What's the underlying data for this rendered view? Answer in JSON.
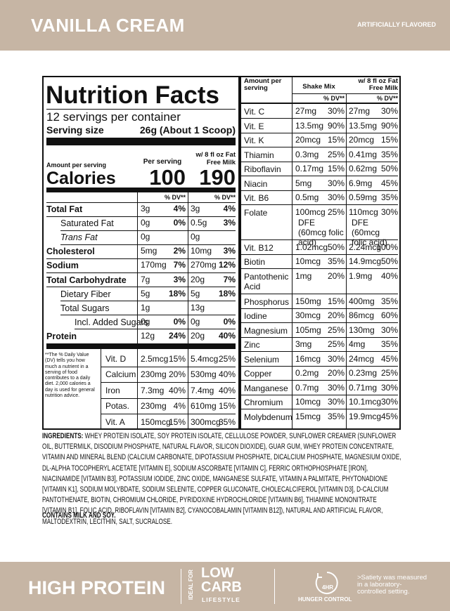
{
  "header": {
    "title": "VANILLA CREAM",
    "flavor_note": "ARTIFICIALLY FLAVORED"
  },
  "label": {
    "title": "Nutrition Facts",
    "servings": "12 servings per container",
    "serving_size_label": "Serving size",
    "serving_size": "26g (About 1 Scoop)",
    "amount_per_serving": "Amount per serving",
    "calories_label": "Calories",
    "per_serving_header": "Per serving",
    "with_milk_header": "w/ 8 fl oz Fat Free Milk",
    "calories": [
      100,
      190
    ],
    "dv_header": "% DV**",
    "nutrients": [
      {
        "name": "Total Fat",
        "serving": "3g",
        "serving_dv": "4%",
        "with_milk": "3g",
        "with_milk_dv": "4%"
      },
      {
        "name": "Saturated Fat",
        "serving": "0g",
        "serving_dv": "0%",
        "with_milk": "0.5g",
        "with_milk_dv": "3%"
      },
      {
        "name": "Trans Fat",
        "serving": "0g",
        "with_milk": "0g"
      },
      {
        "name": "Cholesterol",
        "serving": "5mg",
        "serving_dv": "2%",
        "with_milk": "10mg",
        "with_milk_dv": "3%"
      },
      {
        "name": "Sodium",
        "serving": "170mg",
        "serving_dv": "7%",
        "with_milk": "270mg",
        "with_milk_dv": "12%"
      },
      {
        "name": "Total Carbohydrate",
        "serving": "7g",
        "serving_dv": "3%",
        "with_milk": "20g",
        "with_milk_dv": "7%"
      },
      {
        "name": "Dietary Fiber",
        "serving": "5g",
        "serving_dv": "18%",
        "with_milk": "5g",
        "with_milk_dv": "18%"
      },
      {
        "name": "Total Sugars",
        "serving": "1g",
        "with_milk": "13g"
      },
      {
        "name": "Incl. Added Sugars",
        "serving": "0g",
        "serving_dv": "0%",
        "with_milk": "0g",
        "with_milk_dv": "0%"
      },
      {
        "name": "Protein",
        "serving": "12g",
        "serving_dv": "24%",
        "with_milk": "20g",
        "with_milk_dv": "40%"
      }
    ],
    "footnote": "**The % Daily Value (DV) tells you how much a nutrient in a serving of food contributes to a daily diet. 2,000 calories a day is used for general nutrition advice.",
    "vitamins": [
      {
        "name": "Vit. D",
        "serving": "2.5mcg",
        "serving_dv": "15%",
        "with_milk": "5.4mcg",
        "with_milk_dv": "25%"
      },
      {
        "name": "Calcium",
        "serving": "230mg",
        "serving_dv": "20%",
        "with_milk": "530mg",
        "with_milk_dv": "40%"
      },
      {
        "name": "Iron",
        "serving": "7.3mg",
        "serving_dv": "40%",
        "with_milk": "7.4mg",
        "with_milk_dv": "40%"
      },
      {
        "name": "Potas.",
        "serving": "230mg",
        "serving_dv": "4%",
        "with_milk": "610mg",
        "with_milk_dv": "15%"
      },
      {
        "name": "Vit. A",
        "serving": "150mcg",
        "serving_dv": "15%",
        "with_milk": "300mcg",
        "with_milk_dv": "35%"
      }
    ]
  },
  "right_panel": {
    "amount_header": "Amount per serving",
    "shake_header": "Shake Mix",
    "with_milk_header": "w/ 8 fl oz Fat Free Milk",
    "dv_header": "% DV**",
    "rows": [
      {
        "name": "Vit. C",
        "serving": "27mg",
        "serving_dv": "30%",
        "with_milk": "27mg",
        "with_milk_dv": "30%"
      },
      {
        "name": "Vit. E",
        "serving": "13.5mg",
        "serving_dv": "90%",
        "with_milk": "13.5mg",
        "with_milk_dv": "90%"
      },
      {
        "name": "Vit. K",
        "serving": "20mcg",
        "serving_dv": "15%",
        "with_milk": "20mcg",
        "with_milk_dv": "15%"
      },
      {
        "name": "Thiamin",
        "serving": "0.3mg",
        "serving_dv": "25%",
        "with_milk": "0.41mg",
        "with_milk_dv": "35%"
      },
      {
        "name": "Riboflavin",
        "serving": "0.17mg",
        "serving_dv": "15%",
        "with_milk": "0.62mg",
        "with_milk_dv": "50%"
      },
      {
        "name": "Niacin",
        "serving": "5mg",
        "serving_dv": "30%",
        "with_milk": "6.9mg",
        "with_milk_dv": "45%"
      },
      {
        "name": "Vit. B6",
        "serving": "0.5mg",
        "serving_dv": "30%",
        "with_milk": "0.59mg",
        "with_milk_dv": "35%"
      },
      {
        "name": "Folate",
        "serving": "100mcg",
        "serving_dv": "25%",
        "serving_note": "DFE (60mcg folic acid)",
        "with_milk": "110mcg",
        "with_milk_dv": "30%",
        "with_milk_note": "DFE (60mcg folic acid)"
      },
      {
        "name": "Vit. B12",
        "serving": "1.02mcg",
        "serving_dv": "50%",
        "with_milk": "2.24mcg",
        "with_milk_dv": "100%"
      },
      {
        "name": "Biotin",
        "serving": "10mcg",
        "serving_dv": "35%",
        "with_milk": "14.9mcg",
        "with_milk_dv": "50%"
      },
      {
        "name": "Pantothenic Acid",
        "serving": "1mg",
        "serving_dv": "20%",
        "with_milk": "1.9mg",
        "with_milk_dv": "40%"
      },
      {
        "name": "Phosphorus",
        "serving": "150mg",
        "serving_dv": "15%",
        "with_milk": "400mg",
        "with_milk_dv": "35%"
      },
      {
        "name": "Iodine",
        "serving": "30mcg",
        "serving_dv": "20%",
        "with_milk": "86mcg",
        "with_milk_dv": "60%"
      },
      {
        "name": "Magnesium",
        "serving": "105mg",
        "serving_dv": "25%",
        "with_milk": "130mg",
        "with_milk_dv": "30%"
      },
      {
        "name": "Zinc",
        "serving": "3mg",
        "serving_dv": "25%",
        "with_milk": "4mg",
        "with_milk_dv": "35%"
      },
      {
        "name": "Selenium",
        "serving": "16mcg",
        "serving_dv": "30%",
        "with_milk": "24mcg",
        "with_milk_dv": "45%"
      },
      {
        "name": "Copper",
        "serving": "0.2mg",
        "serving_dv": "20%",
        "with_milk": "0.23mg",
        "with_milk_dv": "25%"
      },
      {
        "name": "Manganese",
        "serving": "0.7mg",
        "serving_dv": "30%",
        "with_milk": "0.71mg",
        "with_milk_dv": "30%"
      },
      {
        "name": "Chromium",
        "serving": "10mcg",
        "serving_dv": "30%",
        "with_milk": "10.1mcg",
        "with_milk_dv": "30%"
      },
      {
        "name": "Molybdenum",
        "serving": "15mcg",
        "serving_dv": "35%",
        "with_milk": "19.9mcg",
        "with_milk_dv": "45%"
      }
    ]
  },
  "ingredients": {
    "label": "INGREDIENTS:",
    "text": "WHEY PROTEIN ISOLATE, SOY PROTEIN ISOLATE, CELLULOSE POWDER, SUNFLOWER CREAMER (SUNFLOWER OIL, BUTTERMILK, DISODIUM PHOSPHATE, NATURAL FLAVOR, SILICON DIOXIDE), GUAR GUM, WHEY PROTEIN CONCENTRATE, VITAMIN AND MINERAL BLEND (CALCIUM CARBONATE, DIPOTASSIUM PHOSPHATE, DICALCIUM PHOSPHATE, MAGNESIUM OXIDE, DL-ALPHA TOCOPHERYL ACETATE [VITAMIN E], SODIUM ASCORBATE [VITAMIN C], FERRIC ORTHOPHOSPHATE [IRON], NIACINAMIDE [VITAMIN B3], POTASSIUM IODIDE, ZINC OXIDE, MANGANESE SULFATE, VITAMIN A PALMITATE, PHYTONADIONE [VITAMIN K1], SODIUM MOLYBDATE, SODIUM SELENITE, COPPER GLUCONATE, CHOLECALCIFEROL [VITAMIN D3], D-CALCIUM PANTOTHENATE, BIOTIN, CHROMIUM CHLORIDE, PYRIDOXINE HYDROCHLORIDE [VITAMIN B6], THIAMINE MONONITRATE [VITAMIN B1], FOLIC ACID, RIBOFLAVIN [VITAMIN B2], CYANOCOBALAMIN [VITAMIN B12]), NATURAL AND ARTIFICIAL FLAVOR, MALTODEXTRIN, LECITHIN, SALT, SUCRALOSE.",
    "allergens": "CONTAINS MILK AND SOY."
  },
  "footer": {
    "high_protein": "HIGH PROTEIN",
    "ideal_for": "IDEAL FOR",
    "low_carb": "LOW CARB",
    "lifestyle": "LIFESTYLE",
    "hours": "4HR",
    "hunger_control": "HUNGER CONTROL",
    "satiety": ">Satiety was measured in a laboratory-controlled setting."
  }
}
